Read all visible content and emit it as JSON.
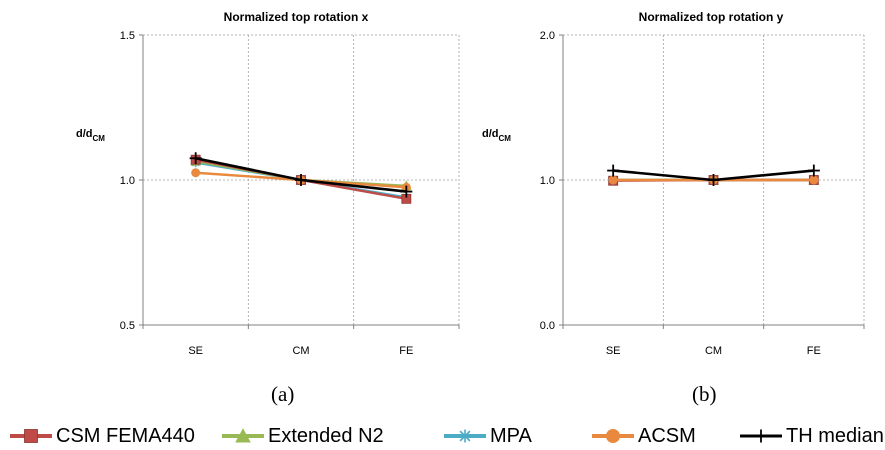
{
  "chart_data": [
    {
      "type": "line",
      "title": "Normalized top rotation x",
      "ylabel": "d/d",
      "ylabel_sub": "CM",
      "categories": [
        "SE",
        "CM",
        "FE"
      ],
      "ylim": [
        0.5,
        1.5
      ],
      "yticks": [
        "0.5",
        "1.0",
        "1.5"
      ],
      "grid": true,
      "series": [
        {
          "name": "CSM FEMA440",
          "values": [
            1.07,
            1.0,
            0.935
          ]
        },
        {
          "name": "Extended N2",
          "values": [
            1.065,
            1.0,
            0.98
          ]
        },
        {
          "name": "MPA",
          "values": [
            1.06,
            1.0,
            0.94
          ]
        },
        {
          "name": "ACSM",
          "values": [
            1.025,
            1.0,
            0.975
          ]
        },
        {
          "name": "TH median",
          "values": [
            1.075,
            1.0,
            0.96
          ]
        }
      ]
    },
    {
      "type": "line",
      "title": "Normalized top rotation y",
      "ylabel": "d/d",
      "ylabel_sub": "CM",
      "categories": [
        "SE",
        "CM",
        "FE"
      ],
      "ylim": [
        0.0,
        2.0
      ],
      "yticks": [
        "0.0",
        "1.0",
        "2.0"
      ],
      "grid": true,
      "series": [
        {
          "name": "CSM FEMA440",
          "values": [
            0.995,
            1.0,
            1.0
          ]
        },
        {
          "name": "Extended N2",
          "values": [
            1.0,
            1.0,
            1.0
          ]
        },
        {
          "name": "MPA",
          "values": [
            1.0,
            1.0,
            1.0
          ]
        },
        {
          "name": "ACSM",
          "values": [
            1.0,
            1.0,
            1.0
          ]
        },
        {
          "name": "TH median",
          "values": [
            1.065,
            1.0,
            1.065
          ]
        }
      ]
    }
  ],
  "captions": {
    "a": "(a)",
    "b": "(b)"
  },
  "legend": [
    {
      "label": "CSM FEMA440",
      "color": "#be4b48",
      "marker": "square"
    },
    {
      "label": "Extended N2",
      "color": "#98b954",
      "marker": "triangle"
    },
    {
      "label": "MPA",
      "color": "#4bacc6",
      "marker": "star"
    },
    {
      "label": "ACSM",
      "color": "#e8893f",
      "marker": "circle"
    },
    {
      "label": "TH median",
      "color": "#000000",
      "marker": "plus"
    }
  ]
}
